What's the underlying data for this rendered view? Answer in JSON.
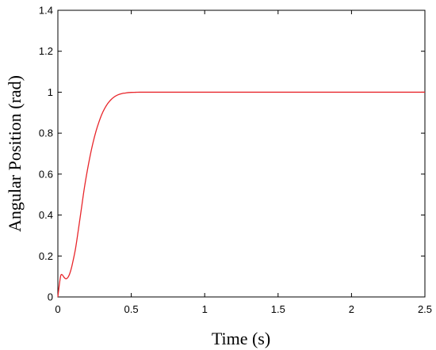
{
  "chart_data": {
    "type": "line",
    "title": "",
    "xlabel": "Time (s)",
    "ylabel": "Angular Position (rad)",
    "xlim": [
      0,
      2.5
    ],
    "ylim": [
      0,
      1.4
    ],
    "xticks": [
      0,
      0.5,
      1,
      1.5,
      2,
      2.5
    ],
    "xtick_labels": [
      "0",
      "0.5",
      "1",
      "1.5",
      "2",
      "2.5"
    ],
    "yticks": [
      0,
      0.2,
      0.4,
      0.6,
      0.8,
      1,
      1.2,
      1.4
    ],
    "ytick_labels": [
      "0",
      "0.2",
      "0.4",
      "0.6",
      "0.8",
      "1",
      "1.2",
      "1.4"
    ],
    "grid": false,
    "series": [
      {
        "color": "#e8262b",
        "x": [
          0,
          0.01,
          0.02,
          0.03,
          0.04,
          0.05,
          0.06,
          0.07,
          0.08,
          0.09,
          0.1,
          0.12,
          0.14,
          0.16,
          0.18,
          0.2,
          0.22,
          0.24,
          0.26,
          0.28,
          0.3,
          0.32,
          0.34,
          0.36,
          0.38,
          0.4,
          0.42,
          0.44,
          0.46,
          0.48,
          0.5,
          0.53,
          0.56,
          0.6,
          0.65,
          0.7,
          0.8,
          1.0,
          1.5,
          2.0,
          2.5
        ],
        "y": [
          0,
          0.06,
          0.105,
          0.108,
          0.098,
          0.09,
          0.09,
          0.097,
          0.112,
          0.135,
          0.165,
          0.235,
          0.33,
          0.43,
          0.53,
          0.615,
          0.69,
          0.755,
          0.81,
          0.855,
          0.893,
          0.922,
          0.945,
          0.962,
          0.975,
          0.984,
          0.99,
          0.994,
          0.996,
          0.998,
          0.999,
          0.9995,
          1.0,
          1.0,
          1.0,
          1.0,
          1.0,
          1.0,
          1.0,
          1.0,
          1.0
        ]
      }
    ]
  }
}
